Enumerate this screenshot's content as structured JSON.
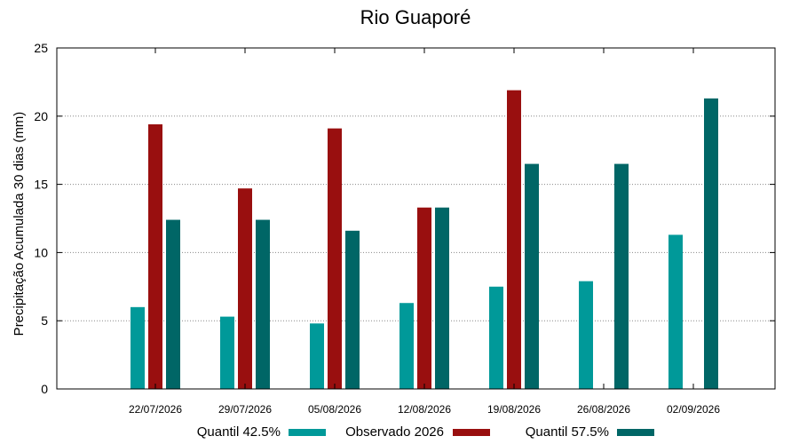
{
  "chart_data": {
    "type": "bar",
    "title": "Rio Guaporé",
    "xlabel": "",
    "ylabel": "Precipitação Acumulada 30 dias (mm)",
    "ylim": [
      0,
      25
    ],
    "yticks": [
      0,
      5,
      10,
      15,
      20,
      25
    ],
    "grid": true,
    "legend_position": "bottom",
    "categories": [
      "22/07/2026",
      "29/07/2026",
      "05/08/2026",
      "12/08/2026",
      "19/08/2026",
      "26/08/2026",
      "02/09/2026"
    ],
    "series": [
      {
        "name": "Quantil 42.5%",
        "color": "#009999",
        "values": [
          6.0,
          5.3,
          4.8,
          6.3,
          7.5,
          7.9,
          11.3
        ]
      },
      {
        "name": "Observado 2026",
        "color": "#990f0f",
        "values": [
          19.4,
          14.7,
          19.1,
          13.3,
          21.9,
          null,
          null
        ]
      },
      {
        "name": "Quantil 57.5%",
        "color": "#006666",
        "values": [
          12.4,
          12.4,
          11.6,
          13.3,
          16.5,
          16.5,
          21.3
        ]
      }
    ]
  }
}
